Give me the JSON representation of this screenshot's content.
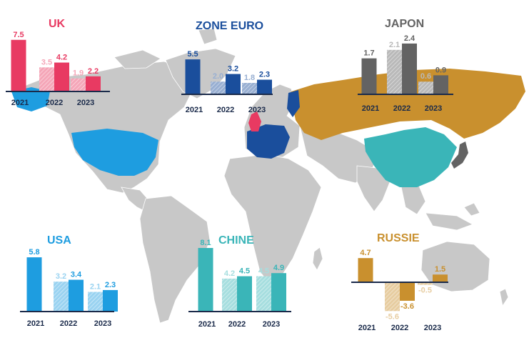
{
  "chart_data": [
    {
      "type": "bar",
      "title": "UK",
      "color": "#e83a62",
      "categories": [
        "2021",
        "2022",
        "2023"
      ],
      "series": [
        {
          "values": [
            null,
            3.5,
            1.9
          ]
        },
        {
          "values": [
            7.5,
            4.2,
            2.2
          ]
        }
      ],
      "ylim": [
        0,
        8.1
      ]
    },
    {
      "type": "bar",
      "title": "ZONE EURO",
      "color": "#1a4e9c",
      "categories": [
        "2021",
        "2022",
        "2023"
      ],
      "series": [
        {
          "values": [
            null,
            2.0,
            1.8
          ]
        },
        {
          "values": [
            5.5,
            3.2,
            2.3
          ]
        }
      ],
      "ylim": [
        0,
        8.1
      ]
    },
    {
      "type": "bar",
      "title": "JAPON",
      "color": "#636363",
      "categories": [
        "2021",
        "2022",
        "2023"
      ],
      "series": [
        {
          "values": [
            null,
            2.1,
            0.6
          ]
        },
        {
          "values": [
            1.7,
            2.4,
            0.9
          ]
        }
      ],
      "ylim": [
        0,
        2.6
      ]
    },
    {
      "type": "bar",
      "title": "USA",
      "color": "#1e9de0",
      "categories": [
        "2021",
        "2022",
        "2023"
      ],
      "series": [
        {
          "values": [
            null,
            3.2,
            2.1
          ]
        },
        {
          "values": [
            5.8,
            3.4,
            2.3
          ]
        }
      ],
      "ylim": [
        0,
        8.1
      ]
    },
    {
      "type": "bar",
      "title": "CHINE",
      "color": "#3ab5b8",
      "categories": [
        "2021",
        "2022",
        "2023"
      ],
      "series": [
        {
          "values": [
            null,
            4.2,
            4.5
          ]
        },
        {
          "values": [
            8.1,
            4.5,
            4.9
          ]
        }
      ],
      "ylim": [
        0,
        8.1
      ]
    },
    {
      "type": "bar",
      "title": "RUSSIE",
      "color": "#c9902e",
      "categories": [
        "2021",
        "2022",
        "2023"
      ],
      "series": [
        {
          "values": [
            null,
            -5.6,
            -0.5
          ]
        },
        {
          "values": [
            4.7,
            -3.6,
            1.5
          ]
        }
      ],
      "ylim": [
        -6,
        5
      ]
    }
  ]
}
